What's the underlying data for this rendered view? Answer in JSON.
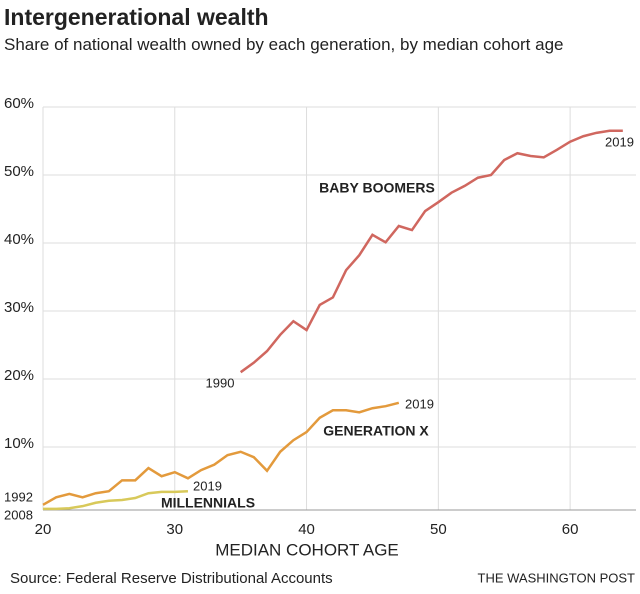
{
  "chart_data": {
    "type": "line",
    "title": "Intergenerational wealth",
    "subtitle": "Share of national wealth owned by each generation, by median cohort age",
    "xlabel": "MEDIAN COHORT AGE",
    "source": "Source: Federal Reserve Distributional Accounts",
    "credit": "THE WASHINGTON POST",
    "xlim": [
      20,
      65
    ],
    "xticks": [
      20,
      30,
      40,
      50,
      60
    ],
    "ylim": [
      0,
      60
    ],
    "yticks": [
      {
        "value": 10,
        "label": "10%"
      },
      {
        "value": 20,
        "label": "20%"
      },
      {
        "value": 30,
        "label": "30%"
      },
      {
        "value": 40,
        "label": "40%"
      },
      {
        "value": 50,
        "label": "50%"
      },
      {
        "value": 60,
        "label": "60%"
      }
    ],
    "grid": true,
    "series": [
      {
        "name": "BABY BOOMERS",
        "color": "#d0675f",
        "start_label": "1990",
        "end_label": "2019",
        "x": [
          35,
          36,
          37,
          38,
          39,
          40,
          41,
          42,
          43,
          44,
          45,
          46,
          47,
          48,
          49,
          50,
          51,
          52,
          53,
          54,
          55,
          56,
          57,
          58,
          59,
          60,
          61,
          62,
          63,
          64
        ],
        "values": [
          21,
          22.4,
          24.1,
          26.5,
          28.5,
          27.2,
          30.9,
          32,
          36,
          38.2,
          41.2,
          40.1,
          42.5,
          41.9,
          44.7,
          46,
          47.4,
          48.4,
          49.6,
          50,
          52.2,
          53.2,
          52.8,
          52.6,
          53.7,
          54.9,
          55.7,
          56.2,
          56.5,
          56.5
        ]
      },
      {
        "name": "GENERATION X",
        "color": "#e39a3c",
        "start_label": "1992",
        "end_label": "2019",
        "x": [
          20,
          21,
          22,
          23,
          24,
          25,
          26,
          27,
          28,
          29,
          30,
          31,
          32,
          33,
          34,
          35,
          36,
          37,
          38,
          39,
          40,
          41,
          42,
          43,
          44,
          45,
          46,
          47
        ],
        "values": [
          1.5,
          2.6,
          3.1,
          2.6,
          3.2,
          3.5,
          5.1,
          5.1,
          6.9,
          5.7,
          6.3,
          5.4,
          6.6,
          7.4,
          8.8,
          9.3,
          8.5,
          6.5,
          9.3,
          11,
          12.2,
          14.3,
          15.4,
          15.4,
          15.1,
          15.7,
          16,
          16.5
        ]
      },
      {
        "name": "MILLENNIALS",
        "color": "#d8c95a",
        "start_label": "2008",
        "end_label": "2019",
        "x": [
          20,
          21,
          22,
          23,
          24,
          25,
          26,
          27,
          28,
          29,
          30,
          31
        ],
        "values": [
          0.9,
          0.9,
          1,
          1.3,
          1.8,
          2.1,
          2.2,
          2.5,
          3.2,
          3.4,
          3.4,
          3.5
        ]
      }
    ]
  }
}
